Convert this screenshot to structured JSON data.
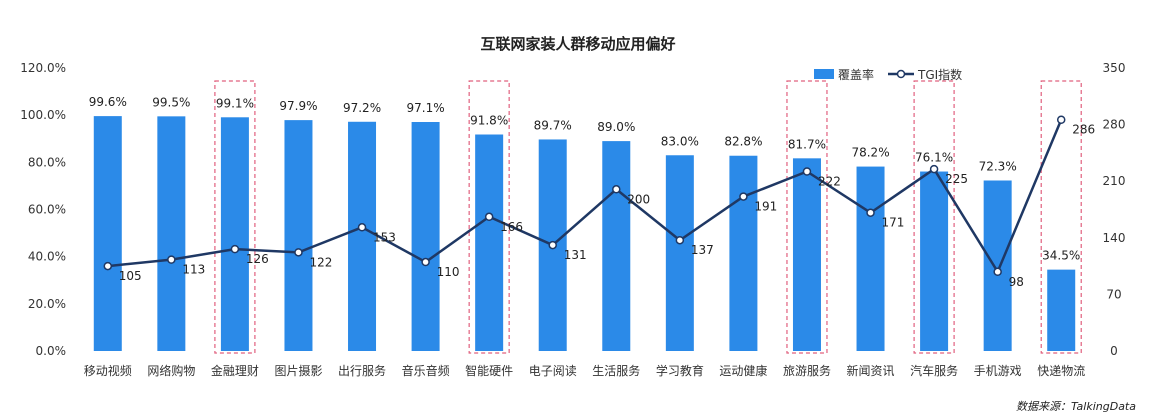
{
  "chart_data": {
    "type": "bar",
    "title": "互联网家装人群移动应用偏好",
    "categories": [
      "移动视频",
      "网络购物",
      "金融理财",
      "图片摄影",
      "出行服务",
      "音乐音频",
      "智能硬件",
      "电子阅读",
      "生活服务",
      "学习教育",
      "运动健康",
      "旅游服务",
      "新闻资讯",
      "汽车服务",
      "手机游戏",
      "快递物流"
    ],
    "series": [
      {
        "name": "覆盖率",
        "type": "bar",
        "axis": "left",
        "values": [
          99.6,
          99.5,
          99.1,
          97.9,
          97.2,
          97.1,
          91.8,
          89.7,
          89.0,
          83.0,
          82.8,
          81.7,
          78.2,
          76.1,
          72.3,
          34.5
        ],
        "labels": [
          "99.6%",
          "99.5%",
          "99.1%",
          "97.9%",
          "97.2%",
          "97.1%",
          "91.8%",
          "89.7%",
          "89.0%",
          "83.0%",
          "82.8%",
          "81.7%",
          "78.2%",
          "76.1%",
          "72.3%",
          "34.5%"
        ]
      },
      {
        "name": "TGI指数",
        "type": "line",
        "axis": "right",
        "values": [
          105,
          113,
          126,
          122,
          153,
          110,
          166,
          131,
          200,
          137,
          191,
          222,
          171,
          225,
          98,
          286
        ],
        "labels": [
          "105",
          "113",
          "126",
          "122",
          "153",
          "110",
          "166",
          "131",
          "200",
          "137",
          "191",
          "222",
          "171",
          "225",
          "98",
          "286"
        ]
      }
    ],
    "y_left": {
      "ylim": [
        0,
        120
      ],
      "tick_labels": [
        "0.0%",
        "20.0%",
        "40.0%",
        "60.0%",
        "80.0%",
        "100.0%",
        "120.0%"
      ],
      "tick_values": [
        0,
        20,
        40,
        60,
        80,
        100,
        120
      ]
    },
    "y_right": {
      "ylim": [
        0,
        350
      ],
      "tick_labels": [
        "0",
        "70",
        "140",
        "210",
        "280",
        "350"
      ],
      "tick_values": [
        0,
        70,
        140,
        210,
        280,
        350
      ]
    },
    "highlighted_categories": [
      "金融理财",
      "智能硬件",
      "旅游服务",
      "汽车服务",
      "快递物流"
    ],
    "legend_position": "top-right",
    "grid": false,
    "colors": {
      "bar": "#2b8ae8",
      "line": "#1f3864",
      "highlight": "#e0607e"
    },
    "source": "数据来源：TalkingData"
  }
}
